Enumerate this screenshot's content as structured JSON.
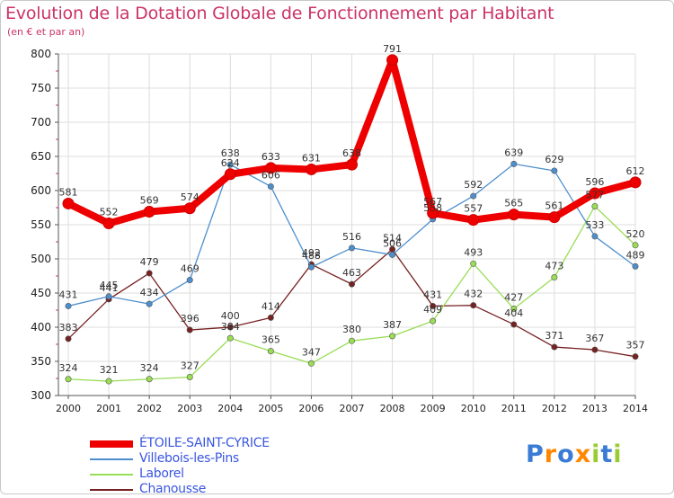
{
  "header": {
    "title": "Evolution de la Dotation Globale de Fonctionnement par Habitant",
    "subtitle": "(en € et par an)"
  },
  "logo": {
    "text": "Proxiti"
  },
  "colors": {
    "title": "#cc3366",
    "grid": "#dddddd",
    "axis": "#555555",
    "label": "#333333",
    "legend_text": "#3a56e0"
  },
  "chart_data": {
    "type": "line",
    "x": [
      "2000",
      "2001",
      "2002",
      "2003",
      "2004",
      "2005",
      "2006",
      "2007",
      "2008",
      "2009",
      "2010",
      "2011",
      "2012",
      "2013",
      "2014"
    ],
    "ylim": [
      300,
      800
    ],
    "yticks": [
      "300",
      "350",
      "400",
      "450",
      "500",
      "550",
      "600",
      "650",
      "700",
      "750",
      "800"
    ],
    "grid": true,
    "legend_position": "bottom-left",
    "series": [
      {
        "name": "ÉTOILE-SAINT-CYRICE",
        "color": "#ee0000",
        "width": 8,
        "values": [
          581,
          552,
          569,
          574,
          624,
          633,
          631,
          638,
          791,
          567,
          557,
          565,
          561,
          596,
          612
        ]
      },
      {
        "name": "Villebois-les-Pins",
        "color": "#4d8fcc",
        "width": 1.3,
        "values": [
          431,
          445,
          434,
          469,
          638,
          606,
          488,
          516,
          506,
          558,
          592,
          639,
          629,
          533,
          489
        ]
      },
      {
        "name": "Laborel",
        "color": "#99dd55",
        "width": 1.3,
        "values": [
          324,
          321,
          324,
          327,
          384,
          365,
          347,
          380,
          387,
          409,
          493,
          427,
          473,
          577,
          520
        ]
      },
      {
        "name": "Chanousse",
        "color": "#772222",
        "width": 1.3,
        "values": [
          383,
          441,
          479,
          396,
          400,
          414,
          492,
          463,
          514,
          431,
          432,
          404,
          371,
          367,
          357
        ]
      }
    ]
  }
}
